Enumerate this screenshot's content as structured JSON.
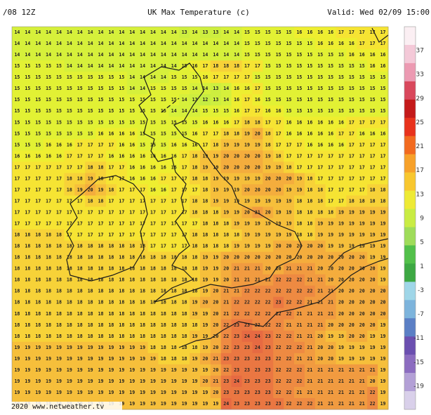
{
  "header": {
    "left": "/08 12Z",
    "title": "UK Max Temperature (c)",
    "valid": "Valid: Wed 02/09 15:00"
  },
  "footer": "2020 www.netweather.tv",
  "grid": {
    "colors": {
      "12": "#c5ec42",
      "13": "#cdee3f",
      "14": "#d6f03b",
      "15": "#e2f134",
      "16": "#eeee30",
      "17": "#f6e433",
      "18": "#f7d238",
      "19": "#f6bf3b",
      "20": "#f4ad3d",
      "21": "#f19b40",
      "22": "#ee8a42",
      "23": "#ea7742",
      "24": "#e66a42"
    },
    "rows": [
      [
        14,
        14,
        14,
        14,
        14,
        14,
        14,
        14,
        14,
        14,
        14,
        14,
        14,
        14,
        14,
        14,
        13,
        14,
        13,
        13,
        14,
        14,
        15,
        15,
        15,
        15,
        15,
        16,
        16,
        16,
        16,
        17,
        17,
        17,
        17,
        17
      ],
      [
        14,
        14,
        14,
        14,
        14,
        14,
        14,
        14,
        14,
        14,
        14,
        14,
        14,
        14,
        14,
        14,
        14,
        14,
        14,
        14,
        14,
        14,
        15,
        15,
        15,
        15,
        15,
        15,
        15,
        16,
        16,
        16,
        16,
        17,
        17,
        17
      ],
      [
        14,
        14,
        14,
        14,
        14,
        14,
        14,
        14,
        14,
        14,
        14,
        14,
        14,
        14,
        14,
        14,
        14,
        14,
        14,
        14,
        14,
        14,
        15,
        15,
        15,
        15,
        15,
        15,
        15,
        15,
        15,
        15,
        16,
        16,
        16,
        16
      ],
      [
        15,
        15,
        15,
        15,
        15,
        14,
        14,
        14,
        14,
        14,
        14,
        14,
        14,
        14,
        14,
        14,
        15,
        16,
        17,
        18,
        18,
        18,
        17,
        17,
        15,
        15,
        15,
        15,
        15,
        15,
        15,
        15,
        15,
        15,
        16,
        16
      ],
      [
        15,
        15,
        15,
        15,
        15,
        15,
        15,
        15,
        15,
        15,
        15,
        14,
        14,
        14,
        14,
        15,
        15,
        15,
        16,
        17,
        17,
        17,
        17,
        15,
        15,
        15,
        15,
        15,
        15,
        15,
        15,
        15,
        15,
        15,
        15,
        15
      ],
      [
        15,
        15,
        15,
        15,
        15,
        15,
        15,
        15,
        15,
        15,
        15,
        14,
        14,
        15,
        15,
        15,
        15,
        14,
        14,
        13,
        14,
        16,
        16,
        17,
        15,
        15,
        15,
        15,
        15,
        15,
        15,
        15,
        15,
        15,
        15,
        15
      ],
      [
        15,
        15,
        15,
        15,
        15,
        15,
        15,
        15,
        15,
        15,
        15,
        15,
        15,
        15,
        15,
        15,
        14,
        13,
        12,
        13,
        14,
        16,
        17,
        16,
        15,
        15,
        15,
        15,
        15,
        15,
        15,
        15,
        15,
        15,
        15,
        15
      ],
      [
        15,
        15,
        15,
        15,
        15,
        15,
        15,
        15,
        15,
        15,
        15,
        15,
        15,
        15,
        15,
        14,
        14,
        14,
        15,
        15,
        15,
        16,
        17,
        17,
        16,
        16,
        15,
        15,
        15,
        15,
        15,
        15,
        15,
        15,
        15,
        15
      ],
      [
        15,
        15,
        15,
        15,
        15,
        15,
        15,
        15,
        15,
        15,
        15,
        15,
        15,
        15,
        15,
        15,
        15,
        15,
        16,
        16,
        16,
        17,
        18,
        18,
        17,
        17,
        16,
        16,
        16,
        16,
        16,
        16,
        17,
        17,
        17,
        17
      ],
      [
        15,
        15,
        15,
        15,
        15,
        15,
        15,
        15,
        16,
        16,
        16,
        16,
        15,
        15,
        15,
        15,
        15,
        16,
        17,
        17,
        18,
        18,
        19,
        20,
        18,
        17,
        16,
        16,
        16,
        16,
        16,
        17,
        17,
        16,
        16,
        16
      ],
      [
        15,
        15,
        15,
        16,
        16,
        16,
        17,
        17,
        17,
        17,
        16,
        16,
        15,
        15,
        15,
        16,
        16,
        16,
        17,
        18,
        19,
        19,
        19,
        19,
        18,
        17,
        17,
        17,
        16,
        16,
        16,
        16,
        17,
        17,
        17,
        17
      ],
      [
        16,
        16,
        16,
        16,
        16,
        17,
        17,
        17,
        17,
        16,
        16,
        16,
        16,
        16,
        16,
        16,
        17,
        18,
        19,
        19,
        20,
        20,
        20,
        20,
        19,
        18,
        17,
        17,
        17,
        17,
        17,
        17,
        17,
        17,
        17,
        17
      ],
      [
        17,
        17,
        17,
        17,
        17,
        17,
        17,
        18,
        18,
        17,
        17,
        16,
        16,
        16,
        16,
        16,
        17,
        18,
        19,
        19,
        20,
        20,
        20,
        20,
        19,
        19,
        18,
        17,
        17,
        17,
        17,
        17,
        17,
        17,
        17,
        17
      ],
      [
        17,
        17,
        17,
        17,
        17,
        18,
        18,
        19,
        18,
        17,
        17,
        16,
        16,
        16,
        17,
        17,
        17,
        18,
        18,
        19,
        19,
        19,
        19,
        19,
        20,
        20,
        20,
        19,
        18,
        17,
        17,
        17,
        17,
        17,
        17,
        17
      ],
      [
        17,
        17,
        17,
        17,
        17,
        18,
        19,
        20,
        19,
        18,
        17,
        17,
        17,
        16,
        16,
        17,
        17,
        17,
        18,
        19,
        19,
        19,
        20,
        20,
        20,
        20,
        19,
        19,
        18,
        18,
        17,
        17,
        17,
        17,
        18,
        18
      ],
      [
        17,
        17,
        17,
        17,
        17,
        17,
        17,
        18,
        18,
        17,
        17,
        17,
        17,
        17,
        17,
        17,
        17,
        18,
        18,
        19,
        19,
        19,
        19,
        19,
        19,
        19,
        19,
        18,
        18,
        18,
        17,
        17,
        18,
        18,
        18,
        18
      ],
      [
        17,
        17,
        17,
        17,
        17,
        17,
        17,
        17,
        17,
        17,
        17,
        17,
        17,
        17,
        17,
        17,
        17,
        18,
        18,
        18,
        19,
        19,
        20,
        21,
        20,
        19,
        19,
        18,
        18,
        18,
        18,
        19,
        19,
        19,
        19,
        19
      ],
      [
        17,
        17,
        17,
        17,
        17,
        17,
        17,
        17,
        17,
        17,
        17,
        17,
        17,
        17,
        17,
        17,
        17,
        17,
        18,
        18,
        18,
        19,
        19,
        19,
        19,
        19,
        19,
        18,
        18,
        19,
        19,
        19,
        19,
        19,
        19,
        19
      ],
      [
        18,
        18,
        18,
        18,
        18,
        17,
        17,
        17,
        17,
        17,
        17,
        17,
        17,
        17,
        17,
        17,
        17,
        18,
        18,
        18,
        18,
        18,
        19,
        19,
        19,
        19,
        19,
        18,
        18,
        19,
        19,
        19,
        19,
        19,
        19,
        19
      ],
      [
        18,
        18,
        18,
        18,
        18,
        18,
        18,
        18,
        18,
        18,
        18,
        18,
        18,
        17,
        17,
        17,
        17,
        18,
        18,
        18,
        18,
        19,
        19,
        19,
        19,
        20,
        20,
        20,
        20,
        20,
        19,
        19,
        19,
        19,
        19,
        19
      ],
      [
        18,
        18,
        18,
        18,
        18,
        18,
        18,
        18,
        18,
        18,
        18,
        18,
        18,
        18,
        18,
        18,
        18,
        18,
        19,
        19,
        20,
        20,
        20,
        20,
        20,
        20,
        20,
        20,
        20,
        20,
        20,
        20,
        20,
        20,
        19,
        19
      ],
      [
        18,
        18,
        18,
        18,
        18,
        18,
        18,
        18,
        18,
        18,
        18,
        18,
        18,
        18,
        18,
        18,
        18,
        18,
        19,
        19,
        20,
        21,
        21,
        21,
        20,
        20,
        21,
        21,
        21,
        20,
        20,
        20,
        20,
        20,
        20,
        19
      ],
      [
        18,
        18,
        18,
        18,
        18,
        18,
        18,
        18,
        18,
        18,
        18,
        18,
        18,
        18,
        18,
        18,
        18,
        18,
        19,
        19,
        20,
        21,
        21,
        21,
        21,
        22,
        22,
        22,
        21,
        21,
        20,
        20,
        20,
        20,
        20,
        19
      ],
      [
        18,
        18,
        18,
        18,
        18,
        18,
        18,
        18,
        18,
        18,
        18,
        18,
        18,
        18,
        18,
        18,
        18,
        18,
        19,
        20,
        21,
        21,
        22,
        22,
        22,
        22,
        22,
        22,
        22,
        21,
        21,
        20,
        20,
        20,
        20,
        20
      ],
      [
        18,
        18,
        18,
        18,
        18,
        18,
        18,
        18,
        18,
        18,
        18,
        18,
        18,
        18,
        18,
        18,
        18,
        19,
        20,
        20,
        21,
        22,
        22,
        22,
        22,
        23,
        22,
        22,
        21,
        21,
        21,
        20,
        20,
        20,
        20,
        20
      ],
      [
        18,
        18,
        18,
        18,
        18,
        18,
        18,
        18,
        18,
        18,
        18,
        18,
        18,
        18,
        18,
        18,
        18,
        19,
        19,
        20,
        21,
        22,
        22,
        22,
        22,
        22,
        22,
        21,
        21,
        21,
        21,
        20,
        20,
        20,
        20,
        20
      ],
      [
        18,
        18,
        18,
        18,
        18,
        18,
        18,
        18,
        18,
        18,
        18,
        18,
        18,
        18,
        18,
        18,
        18,
        18,
        19,
        20,
        22,
        23,
        23,
        22,
        22,
        22,
        21,
        21,
        21,
        21,
        20,
        20,
        20,
        20,
        20,
        19
      ],
      [
        18,
        18,
        18,
        18,
        18,
        18,
        18,
        18,
        18,
        18,
        18,
        18,
        18,
        18,
        18,
        18,
        18,
        19,
        19,
        20,
        22,
        23,
        24,
        24,
        23,
        22,
        22,
        21,
        21,
        20,
        19,
        19,
        20,
        20,
        19,
        19
      ],
      [
        19,
        19,
        19,
        19,
        19,
        19,
        19,
        19,
        19,
        19,
        19,
        19,
        19,
        18,
        18,
        18,
        18,
        18,
        19,
        20,
        22,
        23,
        23,
        24,
        23,
        22,
        22,
        22,
        21,
        20,
        20,
        19,
        19,
        19,
        19,
        19
      ],
      [
        19,
        19,
        19,
        19,
        19,
        19,
        19,
        19,
        19,
        19,
        19,
        19,
        19,
        19,
        18,
        18,
        18,
        19,
        20,
        21,
        23,
        23,
        23,
        23,
        23,
        22,
        22,
        21,
        21,
        20,
        20,
        19,
        19,
        19,
        19,
        19
      ],
      [
        19,
        19,
        19,
        19,
        19,
        19,
        19,
        19,
        19,
        19,
        19,
        19,
        19,
        19,
        19,
        19,
        19,
        19,
        19,
        20,
        22,
        23,
        23,
        23,
        23,
        22,
        22,
        22,
        21,
        21,
        21,
        21,
        21,
        21,
        21,
        19
      ],
      [
        19,
        19,
        19,
        19,
        19,
        19,
        19,
        19,
        19,
        19,
        19,
        19,
        19,
        19,
        19,
        19,
        19,
        19,
        20,
        21,
        23,
        24,
        23,
        23,
        23,
        22,
        22,
        22,
        21,
        21,
        21,
        21,
        21,
        21,
        20,
        19
      ],
      [
        19,
        19,
        19,
        19,
        19,
        19,
        19,
        19,
        19,
        19,
        19,
        19,
        19,
        19,
        19,
        19,
        19,
        19,
        19,
        20,
        23,
        23,
        23,
        23,
        23,
        22,
        22,
        21,
        21,
        21,
        21,
        21,
        21,
        21,
        22,
        19
      ],
      [
        19,
        19,
        19,
        19,
        19,
        19,
        19,
        19,
        19,
        19,
        19,
        19,
        19,
        19,
        19,
        19,
        19,
        19,
        19,
        19,
        24,
        23,
        23,
        23,
        23,
        23,
        22,
        22,
        22,
        21,
        21,
        21,
        21,
        21,
        22,
        19
      ]
    ]
  },
  "colorbar": {
    "colors": [
      "#fbeff3",
      "#f4c9d8",
      "#ec9ab2",
      "#d9485c",
      "#c41a1a",
      "#e8321c",
      "#f26a1f",
      "#f7a12a",
      "#f8c72f",
      "#eeea35",
      "#c9ec44",
      "#9fdc5a",
      "#52c04a",
      "#3da843",
      "#9fd6e8",
      "#7db4dc",
      "#5b7fc5",
      "#6b4fb0",
      "#8c6cc0",
      "#b3a0d6",
      "#d9d0ea"
    ],
    "labels": [
      37,
      33,
      29,
      25,
      21,
      17,
      13,
      9,
      5,
      1,
      -3,
      -7,
      -11,
      -15,
      -19
    ]
  }
}
